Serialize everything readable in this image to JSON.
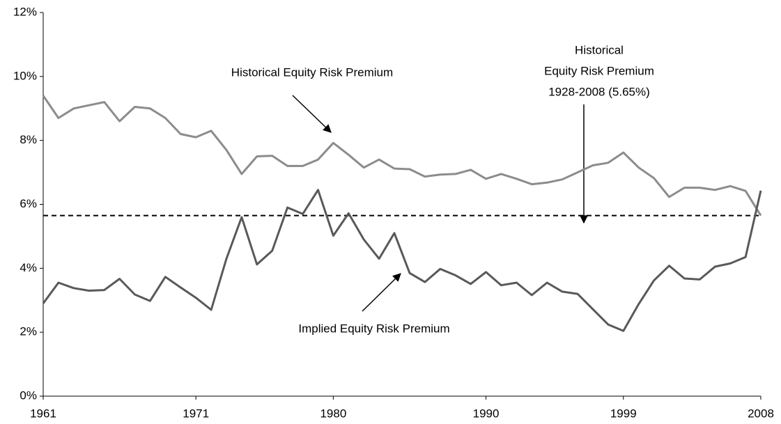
{
  "chart_data": {
    "type": "line",
    "categories": [
      "1961",
      null,
      null,
      null,
      null,
      null,
      null,
      null,
      null,
      null,
      "1971",
      null,
      null,
      null,
      null,
      null,
      null,
      null,
      null,
      "1980",
      null,
      null,
      null,
      null,
      null,
      null,
      null,
      null,
      null,
      "1990",
      null,
      null,
      null,
      null,
      null,
      null,
      null,
      null,
      "1999",
      null,
      null,
      null,
      null,
      null,
      null,
      null,
      null,
      "2008"
    ],
    "series": [
      {
        "name": "Historical Equity Risk Premium",
        "color": "#8c8c8c",
        "values": [
          9.4,
          8.7,
          9.0,
          9.1,
          9.2,
          8.6,
          9.05,
          9.0,
          8.7,
          8.2,
          8.1,
          8.3,
          7.7,
          6.95,
          7.5,
          7.52,
          7.2,
          7.2,
          7.4,
          7.92,
          7.55,
          7.15,
          7.4,
          7.12,
          7.1,
          6.87,
          6.93,
          6.95,
          7.08,
          6.8,
          6.95,
          6.8,
          6.63,
          6.68,
          6.78,
          7.0,
          7.22,
          7.3,
          7.62,
          7.15,
          6.82,
          6.23,
          6.52,
          6.52,
          6.45,
          6.57,
          6.42,
          5.65
        ]
      },
      {
        "name": "Implied Equity Risk Premium",
        "color": "#595959",
        "values": [
          2.9,
          3.55,
          3.38,
          3.3,
          3.32,
          3.67,
          3.18,
          2.98,
          3.73,
          3.4,
          3.08,
          2.7,
          4.3,
          5.6,
          4.12,
          4.55,
          5.9,
          5.7,
          6.45,
          5.02,
          5.72,
          4.9,
          4.3,
          5.1,
          3.85,
          3.57,
          3.98,
          3.78,
          3.51,
          3.88,
          3.47,
          3.55,
          3.16,
          3.55,
          3.27,
          3.2,
          2.72,
          2.24,
          2.04,
          2.88,
          3.62,
          4.08,
          3.68,
          3.65,
          4.05,
          4.15,
          4.35,
          6.43
        ]
      }
    ],
    "reference_line": {
      "value": 5.65,
      "label": [
        "Historical",
        "Equity Risk Premium",
        "1928-2008 (5.65%)"
      ]
    },
    "ylim": [
      0,
      12
    ],
    "yticks": [
      {
        "value": 0,
        "label": "0%"
      },
      {
        "value": 2,
        "label": "2%"
      },
      {
        "value": 4,
        "label": "4%"
      },
      {
        "value": 6,
        "label": "6%"
      },
      {
        "value": 8,
        "label": "8%"
      },
      {
        "value": 10,
        "label": "10%"
      },
      {
        "value": 12,
        "label": "12%"
      }
    ],
    "grid": false
  }
}
